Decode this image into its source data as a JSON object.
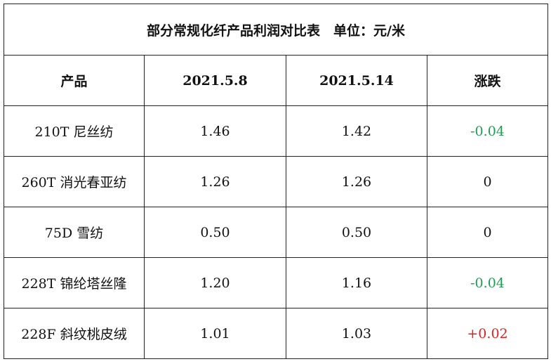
{
  "table": {
    "title": "部分常规化纤产品利润对比表　单位：元/米",
    "header": [
      "产品",
      "2021.5.8",
      "2021.5.14",
      "涨跌"
    ],
    "rows": [
      {
        "cells": [
          "210T 尼丝纺",
          "1.46",
          "1.42",
          "-0.04"
        ],
        "change_color": "#1f9d55"
      },
      {
        "cells": [
          "260T 消光春亚纺",
          "1.26",
          "1.26",
          "0"
        ],
        "change_color": "#111111"
      },
      {
        "cells": [
          "75D 雪纺",
          "0.50",
          "0.50",
          "0"
        ],
        "change_color": "#111111"
      },
      {
        "cells": [
          "228T 锦纶塔丝隆",
          "1.20",
          "1.16",
          "-0.04"
        ],
        "change_color": "#1f9d55"
      },
      {
        "cells": [
          "228F 斜纹桃皮绒",
          "1.01",
          "1.03",
          "+0.02"
        ],
        "change_color": "#e02020"
      }
    ]
  }
}
